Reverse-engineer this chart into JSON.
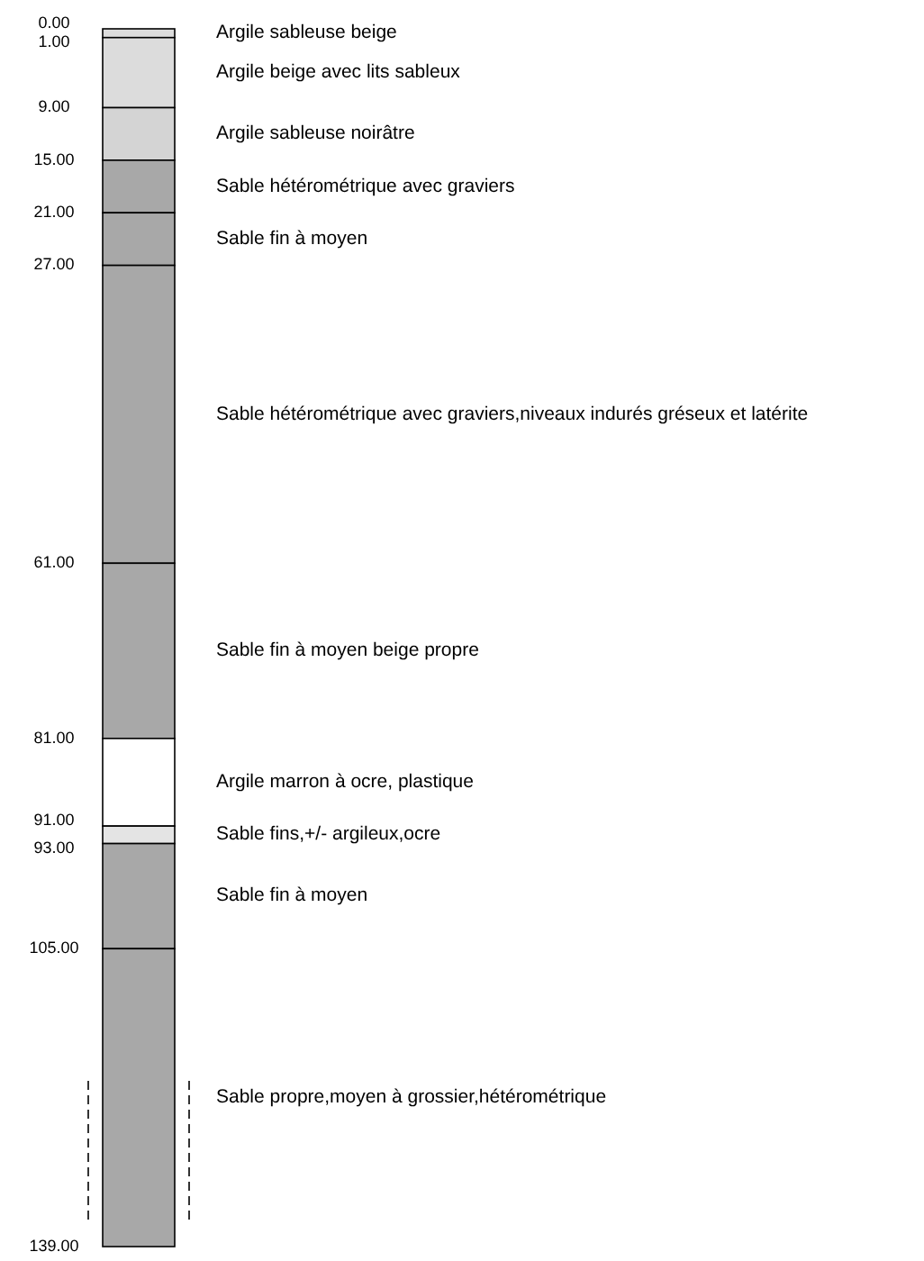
{
  "chart_data": {
    "type": "bar",
    "stacked": true,
    "categories": [
      null
    ],
    "ylim": [
      139,
      0
    ],
    "yticks": [
      {
        "value": 0,
        "label": "0.00"
      },
      {
        "value": 1,
        "label": "1.00"
      },
      {
        "value": 9,
        "label": "9.00"
      },
      {
        "value": 15,
        "label": "15.00"
      },
      {
        "value": 21,
        "label": "21.00"
      },
      {
        "value": 27,
        "label": "27.00"
      },
      {
        "value": 61,
        "label": "61.00"
      },
      {
        "value": 81,
        "label": "81.00"
      },
      {
        "value": 91,
        "label": "91.00"
      },
      {
        "value": 93,
        "label": "93.00"
      },
      {
        "value": 105,
        "label": "105.00"
      },
      {
        "value": 139,
        "label": "139.00"
      }
    ],
    "tick_labels": "y",
    "grid": false,
    "series": [
      {
        "name": "Argile sableuse beige",
        "color": "#dcdcdc",
        "values": [
          1
        ]
      },
      {
        "name": "Argile beige avec lits sableux",
        "color": "#dcdcdc",
        "values": [
          8
        ]
      },
      {
        "name": "Argile sableuse noirâtre",
        "color": "#d4d4d4",
        "values": [
          6
        ]
      },
      {
        "name": "Sable hétérométrique avec graviers",
        "color": "#a8a8a8",
        "values": [
          6
        ]
      },
      {
        "name": "Sable fin à moyen",
        "color": "#a8a8a8",
        "values": [
          6
        ]
      },
      {
        "name": "Sable hétérométrique avec graviers,niveaux indurés gréseux et latérite",
        "color": "#a8a8a8",
        "values": [
          34
        ]
      },
      {
        "name": "Sable fin à moyen beige propre",
        "color": "#a8a8a8",
        "values": [
          20
        ]
      },
      {
        "name": "Argile marron à ocre, plastique",
        "color": "#ffffff",
        "values": [
          10
        ]
      },
      {
        "name": "Sable fins,+/- argileux,ocre",
        "color": "#e4e4e4",
        "values": [
          2
        ]
      },
      {
        "name": "Sable fin à moyen",
        "color": "#a8a8a8",
        "values": [
          12
        ]
      },
      {
        "name": "Sable propre,moyen à grossier,hétérométrique",
        "color": "#a8a8a8",
        "values": [
          34
        ]
      }
    ]
  }
}
